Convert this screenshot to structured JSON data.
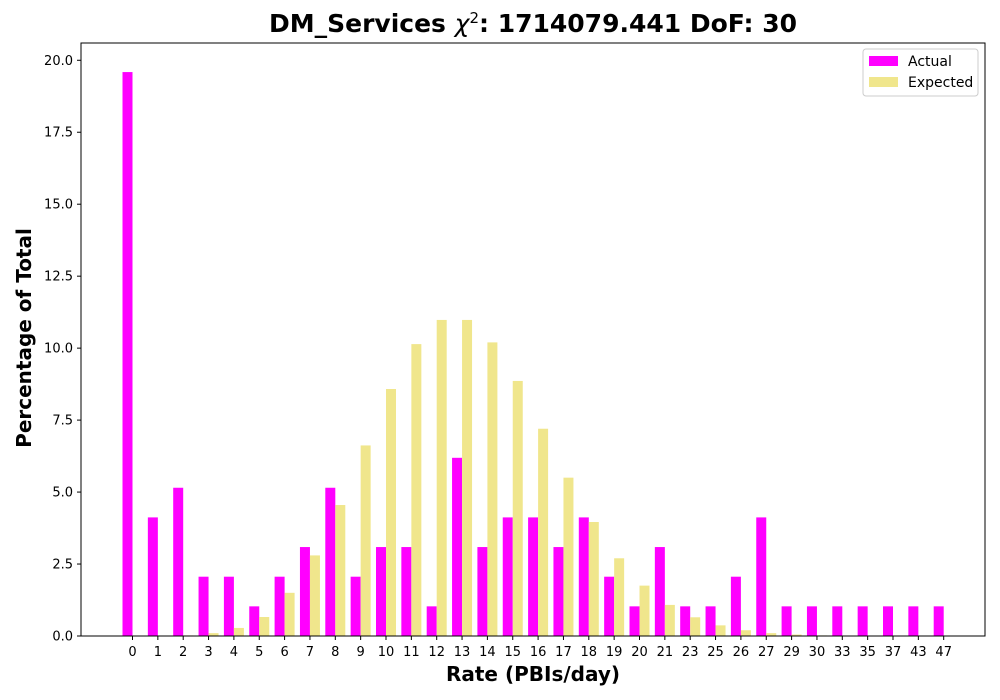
{
  "chart_data": {
    "type": "bar",
    "title": "DM_Services χ²: 1714079.441 DoF: 30",
    "title_prefix": "DM_Services ",
    "title_chi": "χ",
    "title_sup": "2",
    "title_suffix": ": 1714079.441 DoF: 30",
    "xlabel": "Rate (PBIs/day)",
    "ylabel": "Percentage of Total",
    "ylim": [
      0,
      20.6
    ],
    "yticks": [
      "0.0",
      "2.5",
      "5.0",
      "7.5",
      "10.0",
      "12.5",
      "15.0",
      "17.5",
      "20.0"
    ],
    "categories": [
      "0",
      "1",
      "2",
      "3",
      "4",
      "5",
      "6",
      "7",
      "8",
      "9",
      "10",
      "11",
      "12",
      "13",
      "14",
      "15",
      "16",
      "17",
      "18",
      "19",
      "20",
      "21",
      "23",
      "25",
      "26",
      "27",
      "29",
      "30",
      "33",
      "35",
      "37",
      "43",
      "47"
    ],
    "series": [
      {
        "name": "Actual",
        "color": "#ff00ff",
        "values": [
          19.59,
          4.12,
          5.15,
          2.06,
          2.06,
          1.03,
          2.06,
          3.09,
          5.15,
          2.06,
          3.09,
          3.09,
          1.03,
          6.19,
          3.09,
          4.12,
          4.12,
          3.09,
          4.12,
          2.06,
          1.03,
          3.09,
          1.03,
          1.03,
          2.06,
          4.12,
          1.03,
          1.03,
          1.03,
          1.03,
          1.03,
          1.03,
          1.03
        ]
      },
      {
        "name": "Expected",
        "color": "#f0e68c",
        "values": [
          0.0,
          0.0,
          0.02,
          0.1,
          0.28,
          0.66,
          1.5,
          2.8,
          4.55,
          6.62,
          8.58,
          10.14,
          10.98,
          10.98,
          10.2,
          8.86,
          7.2,
          5.5,
          3.96,
          2.7,
          1.75,
          1.08,
          0.65,
          0.37,
          0.2,
          0.1,
          0.05,
          0.02,
          0.0,
          0.0,
          0.0,
          0.0,
          0.0
        ]
      }
    ],
    "legend_position": "top-right",
    "grid": false
  }
}
